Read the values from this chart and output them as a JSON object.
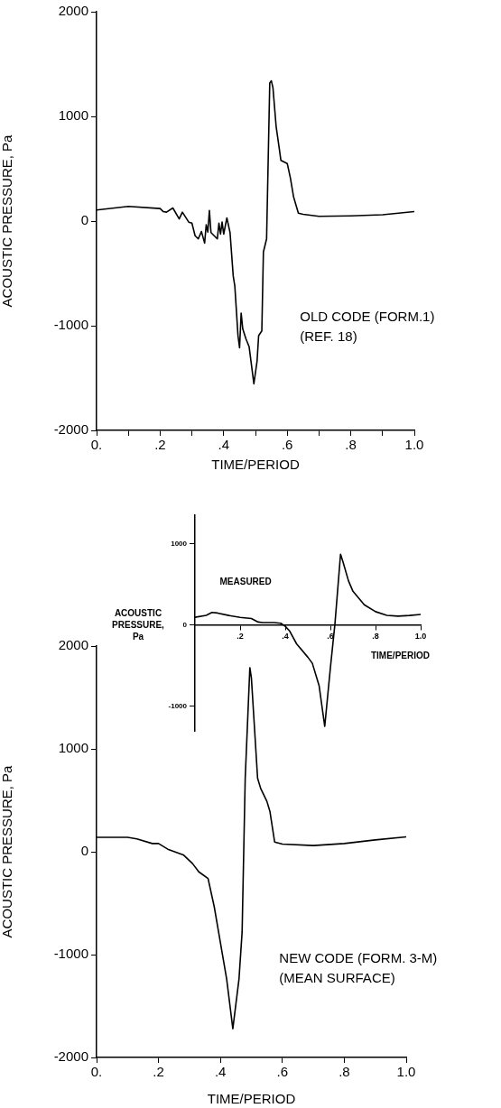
{
  "chart_data": [
    {
      "type": "line",
      "xlabel": "TIME/PERIOD",
      "ylabel": "ACOUSTIC PRESSURE, Pa",
      "annotations": [
        "OLD CODE (FORM.1)",
        "(REF. 18)"
      ],
      "color": "#000000",
      "grid": false,
      "xlim": [
        0,
        1.0
      ],
      "ylim": [
        -2000,
        2000
      ],
      "xticks": [
        {
          "value": 0,
          "label": "0."
        },
        {
          "value": 0.1,
          "label": null
        },
        {
          "value": 0.2,
          "label": ".2"
        },
        {
          "value": 0.3,
          "label": null
        },
        {
          "value": 0.4,
          "label": ".4"
        },
        {
          "value": 0.5,
          "label": null
        },
        {
          "value": 0.6,
          "label": ".6"
        },
        {
          "value": 0.7,
          "label": null
        },
        {
          "value": 0.8,
          "label": ".8"
        },
        {
          "value": 0.9,
          "label": null
        },
        {
          "value": 1.0,
          "label": "1.0"
        }
      ],
      "yticks": [
        -2000,
        -1000,
        0,
        1000,
        2000
      ],
      "x": [
        0,
        0.1,
        0.2,
        0.21,
        0.22,
        0.24,
        0.26,
        0.27,
        0.29,
        0.3,
        0.31,
        0.32,
        0.33,
        0.34,
        0.345,
        0.35,
        0.355,
        0.36,
        0.38,
        0.385,
        0.39,
        0.395,
        0.4,
        0.41,
        0.42,
        0.43,
        0.435,
        0.445,
        0.45,
        0.455,
        0.46,
        0.47,
        0.48,
        0.495,
        0.505,
        0.51,
        0.52,
        0.525,
        0.535,
        0.545,
        0.55,
        0.555,
        0.565,
        0.575,
        0.58,
        0.59,
        0.6,
        0.61,
        0.62,
        0.635,
        0.65,
        0.7,
        0.8,
        0.9,
        1.0
      ],
      "values": [
        105,
        140,
        120,
        90,
        85,
        125,
        20,
        85,
        -10,
        -20,
        -140,
        -170,
        -100,
        -210,
        -35,
        -105,
        100,
        -110,
        -170,
        -20,
        -125,
        -10,
        -125,
        30,
        -110,
        -525,
        -620,
        -1095,
        -1210,
        -880,
        -1030,
        -1125,
        -1200,
        -1555,
        -1340,
        -1095,
        -1050,
        -295,
        -170,
        1320,
        1340,
        1275,
        905,
        690,
        580,
        565,
        550,
        410,
        230,
        75,
        65,
        45,
        50,
        60,
        90
      ]
    },
    {
      "type": "line",
      "xlabel": "TIME/PERIOD",
      "ylabel": "ACOUSTIC PRESSURE, Pa",
      "annotations": [
        "MEASURED"
      ],
      "color": "#000000",
      "grid": false,
      "xlim": [
        0,
        1.0
      ],
      "ylim": [
        -1300,
        1350
      ],
      "xticks": [
        {
          "value": 0.2,
          "label": ".2"
        },
        {
          "value": 0.4,
          "label": ".4"
        },
        {
          "value": 0.6,
          "label": ".6"
        },
        {
          "value": 0.8,
          "label": ".8"
        },
        {
          "value": 1.0,
          "label": "1.0"
        }
      ],
      "yticks": [
        -1000,
        0,
        1000
      ],
      "x": [
        0,
        0.05,
        0.075,
        0.1,
        0.15,
        0.2,
        0.25,
        0.28,
        0.3,
        0.35,
        0.38,
        0.4,
        0.42,
        0.45,
        0.5,
        0.52,
        0.55,
        0.575,
        0.6,
        0.62,
        0.645,
        0.655,
        0.68,
        0.7,
        0.75,
        0.8,
        0.85,
        0.9,
        0.95,
        1.0
      ],
      "values": [
        95,
        120,
        155,
        148,
        118,
        95,
        80,
        37,
        30,
        30,
        22,
        -15,
        -75,
        -230,
        -395,
        -470,
        -745,
        -1245,
        -525,
        10,
        870,
        785,
        545,
        415,
        250,
        165,
        120,
        110,
        118,
        130
      ]
    },
    {
      "type": "line",
      "xlabel": "TIME/PERIOD",
      "ylabel": "ACOUSTIC PRESSURE, Pa",
      "annotations": [
        "NEW CODE (FORM. 3-M)",
        "(MEAN SURFACE)"
      ],
      "color": "#000000",
      "grid": false,
      "xlim": [
        0,
        1.0
      ],
      "ylim": [
        -2000,
        2000
      ],
      "xticks": [
        {
          "value": 0,
          "label": "0."
        },
        {
          "value": 0.2,
          "label": ".2"
        },
        {
          "value": 0.4,
          "label": ".4"
        },
        {
          "value": 0.6,
          "label": ".6"
        },
        {
          "value": 0.8,
          "label": ".8"
        },
        {
          "value": 1.0,
          "label": "1.0"
        }
      ],
      "yticks": [
        -2000,
        -1000,
        0,
        1000,
        2000
      ],
      "x": [
        0,
        0.1,
        0.13,
        0.18,
        0.2,
        0.23,
        0.28,
        0.31,
        0.33,
        0.36,
        0.38,
        0.42,
        0.44,
        0.46,
        0.47,
        0.48,
        0.495,
        0.5,
        0.52,
        0.53,
        0.55,
        0.56,
        0.575,
        0.6,
        0.7,
        0.8,
        0.9,
        1.0
      ],
      "values": [
        140,
        140,
        125,
        80,
        80,
        25,
        -30,
        -115,
        -195,
        -260,
        -535,
        -1235,
        -1720,
        -1235,
        -780,
        715,
        1790,
        1690,
        715,
        615,
        490,
        390,
        95,
        75,
        60,
        80,
        115,
        145
      ]
    }
  ]
}
